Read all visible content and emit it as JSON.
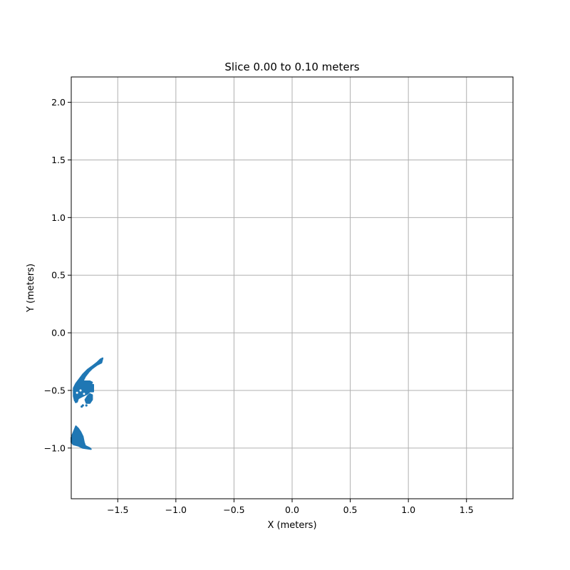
{
  "chart_data": {
    "type": "scatter",
    "title": "Slice 0.00 to 0.10 meters",
    "xlabel": "X (meters)",
    "ylabel": "Y (meters)",
    "xlim": [
      -1.9,
      1.9
    ],
    "ylim": [
      -1.44,
      2.22
    ],
    "x_ticks": [
      -1.5,
      -1.0,
      -0.5,
      0.0,
      0.5,
      1.0,
      1.5
    ],
    "x_tick_labels": [
      "−1.5",
      "−1.0",
      "−0.5",
      "0.0",
      "0.5",
      "1.0",
      "1.5"
    ],
    "y_ticks": [
      -1.0,
      -0.5,
      0.0,
      0.5,
      1.0,
      1.5,
      2.0
    ],
    "y_tick_labels": [
      "−1.0",
      "−0.5",
      "0.0",
      "0.5",
      "1.0",
      "1.5",
      "2.0"
    ],
    "grid": true,
    "point_color": "#1f77b4",
    "clusters": [
      {
        "shape": "polygon",
        "points": [
          [
            -1.63,
            -0.22
          ],
          [
            -1.64,
            -0.26
          ],
          [
            -1.68,
            -0.28
          ],
          [
            -1.72,
            -0.31
          ],
          [
            -1.75,
            -0.34
          ],
          [
            -1.78,
            -0.38
          ],
          [
            -1.8,
            -0.42
          ],
          [
            -1.74,
            -0.42
          ],
          [
            -1.72,
            -0.43
          ],
          [
            -1.73,
            -0.45
          ],
          [
            -1.71,
            -0.45
          ],
          [
            -1.71,
            -0.51
          ],
          [
            -1.74,
            -0.51
          ],
          [
            -1.76,
            -0.53
          ],
          [
            -1.8,
            -0.55
          ],
          [
            -1.84,
            -0.57
          ],
          [
            -1.85,
            -0.6
          ],
          [
            -1.87,
            -0.59
          ],
          [
            -1.88,
            -0.55
          ],
          [
            -1.88,
            -0.48
          ],
          [
            -1.86,
            -0.44
          ],
          [
            -1.83,
            -0.4
          ],
          [
            -1.8,
            -0.36
          ],
          [
            -1.76,
            -0.32
          ],
          [
            -1.72,
            -0.29
          ],
          [
            -1.68,
            -0.26
          ],
          [
            -1.65,
            -0.23
          ]
        ]
      },
      {
        "shape": "polygon",
        "points": [
          [
            -1.74,
            -0.53
          ],
          [
            -1.72,
            -0.54
          ],
          [
            -1.72,
            -0.58
          ],
          [
            -1.74,
            -0.61
          ],
          [
            -1.77,
            -0.61
          ],
          [
            -1.78,
            -0.58
          ],
          [
            -1.76,
            -0.55
          ]
        ]
      },
      {
        "shape": "polygon",
        "points": [
          [
            -1.86,
            -0.81
          ],
          [
            -1.84,
            -0.83
          ],
          [
            -1.82,
            -0.86
          ],
          [
            -1.8,
            -0.9
          ],
          [
            -1.79,
            -0.95
          ],
          [
            -1.78,
            -0.98
          ],
          [
            -1.74,
            -1.0
          ],
          [
            -1.73,
            -1.01
          ],
          [
            -1.8,
            -1.0
          ],
          [
            -1.84,
            -0.98
          ],
          [
            -1.88,
            -0.97
          ],
          [
            -1.9,
            -0.95
          ],
          [
            -1.9,
            -0.91
          ],
          [
            -1.88,
            -0.86
          ]
        ]
      },
      {
        "shape": "dots",
        "points": [
          [
            -1.81,
            -0.64
          ],
          [
            -1.8,
            -0.63
          ],
          [
            -1.86,
            -0.6
          ],
          [
            -1.77,
            -0.63
          ]
        ]
      }
    ]
  }
}
